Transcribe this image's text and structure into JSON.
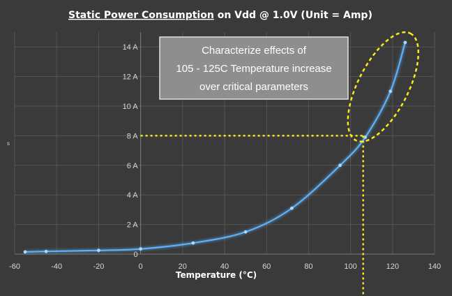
{
  "chart_data": {
    "type": "line",
    "title_parts": [
      "Static Power Consumption",
      " on Vdd @ 1.0V (Unit = Amp)"
    ],
    "xlabel": "Temperature (°C)",
    "ylabel": "s",
    "xlim": [
      -60,
      140
    ],
    "ylim": [
      0,
      15
    ],
    "x_ticks": [
      -60,
      -40,
      -20,
      0,
      20,
      40,
      60,
      80,
      100,
      120,
      140
    ],
    "y_ticks": [
      0,
      2,
      4,
      6,
      8,
      10,
      12,
      14
    ],
    "y_tick_labels": [
      "0",
      "2 A",
      "4 A",
      "6 A",
      "8 A",
      "10 A",
      "12 A",
      "14 A"
    ],
    "grid": true,
    "series": [
      {
        "x": [
          -55,
          -45,
          -20,
          0,
          25,
          50,
          72,
          95,
          107,
          119,
          126
        ],
        "y": [
          0.15,
          0.18,
          0.25,
          0.35,
          0.75,
          1.5,
          3.1,
          6.0,
          7.9,
          11.0,
          14.3
        ],
        "color": "#5fb4ff"
      }
    ],
    "annotations": {
      "callout_lines": [
        "Characterize effects of",
        "105 - 125C Temperature increase",
        "over critical parameters"
      ],
      "highlight_point": {
        "x": 106,
        "y": 8
      },
      "highlight_color": "#f5eb1e"
    }
  }
}
